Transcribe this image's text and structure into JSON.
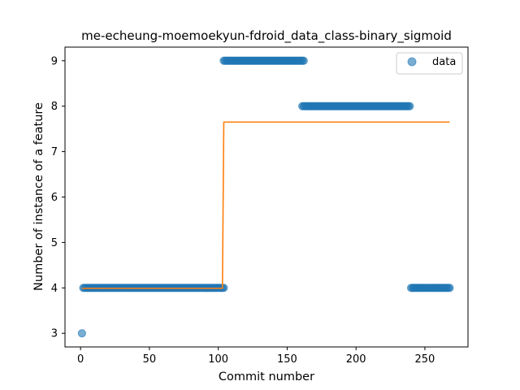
{
  "chart_data": {
    "type": "scatter",
    "title": "me-echeung-moemoekyun-fdroid_data_class-binary_sigmoid",
    "xlabel": "Commit number",
    "ylabel": "Number of instance of a feature",
    "xlim": [
      -11.3,
      281.3
    ],
    "ylim": [
      2.7,
      9.3
    ],
    "xticks": [
      0,
      50,
      100,
      150,
      200,
      250
    ],
    "yticks": [
      3,
      4,
      5,
      6,
      7,
      8,
      9
    ],
    "grid": false,
    "legend_position": "top-right",
    "scatter_series": {
      "name": "data",
      "color": "#1f77b4",
      "segments": [
        {
          "x_start": 1,
          "x_end": 1,
          "y": 3
        },
        {
          "x_start": 2,
          "x_end": 104,
          "y": 4
        },
        {
          "x_start": 104,
          "x_end": 162,
          "y": 9
        },
        {
          "x_start": 161,
          "x_end": 239,
          "y": 8
        },
        {
          "x_start": 240,
          "x_end": 268,
          "y": 4
        }
      ]
    },
    "fit_line": {
      "color": "#ff7f0e",
      "points": [
        [
          1,
          3.99
        ],
        [
          103,
          3.99
        ],
        [
          104,
          7.65
        ],
        [
          268,
          7.65
        ]
      ]
    }
  }
}
